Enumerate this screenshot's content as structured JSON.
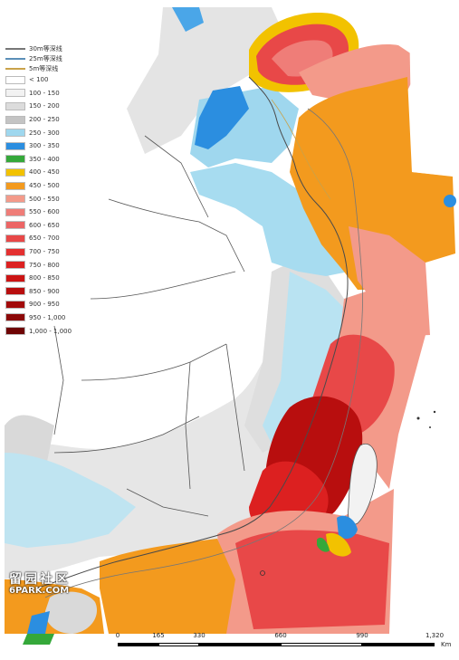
{
  "legend": {
    "lines": [
      {
        "label": "30m等深线",
        "color": "#777777"
      },
      {
        "label": "25m等深线",
        "color": "#5b8fb8"
      },
      {
        "label": "5m等深线",
        "color": "#c9a24a"
      }
    ],
    "classes": [
      {
        "label": "< 100",
        "color": "#ffffff"
      },
      {
        "label": "100 - 150",
        "color": "#f2f2f2"
      },
      {
        "label": "150 - 200",
        "color": "#dcdcdc"
      },
      {
        "label": "200 - 250",
        "color": "#c4c4c4"
      },
      {
        "label": "250 - 300",
        "color": "#9fd7ee"
      },
      {
        "label": "300 - 350",
        "color": "#2b8ee0"
      },
      {
        "label": "350 - 400",
        "color": "#35a83a"
      },
      {
        "label": "400 - 450",
        "color": "#f2c200"
      },
      {
        "label": "450 - 500",
        "color": "#f39a1e"
      },
      {
        "label": "500 - 550",
        "color": "#f39a8a"
      },
      {
        "label": "550 - 600",
        "color": "#ef7d78"
      },
      {
        "label": "600 - 650",
        "color": "#ec6565"
      },
      {
        "label": "650 - 700",
        "color": "#e84848"
      },
      {
        "label": "700 - 750",
        "color": "#e43030"
      },
      {
        "label": "750 - 800",
        "color": "#dc2020"
      },
      {
        "label": "800 - 850",
        "color": "#cc1414"
      },
      {
        "label": "850 - 900",
        "color": "#b80e0e"
      },
      {
        "label": "900 - 950",
        "color": "#a20a0a"
      },
      {
        "label": "950 - 1,000",
        "color": "#8c0808"
      },
      {
        "label": "1,000 - 1,000",
        "color": "#6e0404"
      }
    ]
  },
  "scale_bar": {
    "ticks": [
      "0",
      "165",
      "330",
      "660",
      "990",
      "1,320"
    ],
    "unit": "Km"
  },
  "watermark": {
    "line1": "留园社区",
    "line2": "6PARK.COM"
  }
}
